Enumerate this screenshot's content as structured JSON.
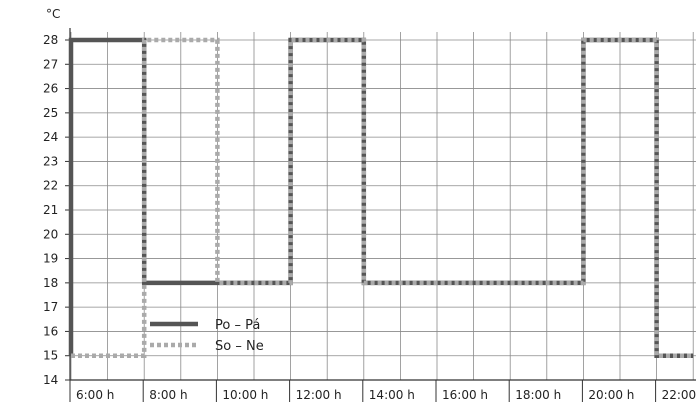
{
  "chart_data": {
    "type": "line",
    "unit_label": "°C",
    "x_ticks": [
      "6:00 h",
      "8:00 h",
      "10:00 h",
      "12:00 h",
      "14:00 h",
      "16:00 h",
      "18:00 h",
      "20:00 h",
      "22:00 h"
    ],
    "y_ticks": [
      14,
      15,
      16,
      17,
      18,
      19,
      20,
      21,
      22,
      23,
      24,
      25,
      26,
      27,
      28
    ],
    "xlim": [
      5,
      23
    ],
    "ylim": [
      14,
      28.6
    ],
    "grid": true,
    "legend_position": "bottom-left",
    "series": [
      {
        "name": "Po – Pá",
        "color": "#555555",
        "style": "solid",
        "points": [
          [
            6.0,
            15
          ],
          [
            6.0,
            28
          ],
          [
            8.0,
            28
          ],
          [
            8.0,
            18
          ],
          [
            12.0,
            18
          ],
          [
            12.0,
            28
          ],
          [
            14.0,
            28
          ],
          [
            14.0,
            18
          ],
          [
            20.0,
            18
          ],
          [
            20.0,
            28
          ],
          [
            22.0,
            28
          ],
          [
            22.0,
            15
          ],
          [
            23.0,
            15
          ]
        ]
      },
      {
        "name": "So – Ne",
        "color": "#aaaaaa",
        "style": "dotted",
        "points": [
          [
            6.0,
            15
          ],
          [
            8.0,
            15
          ],
          [
            8.0,
            28
          ],
          [
            10.0,
            28
          ],
          [
            10.0,
            18
          ],
          [
            12.0,
            18
          ],
          [
            12.0,
            28
          ],
          [
            14.0,
            28
          ],
          [
            14.0,
            18
          ],
          [
            20.0,
            18
          ],
          [
            20.0,
            28
          ],
          [
            22.0,
            28
          ],
          [
            22.0,
            15
          ],
          [
            23.0,
            15
          ]
        ]
      }
    ]
  }
}
